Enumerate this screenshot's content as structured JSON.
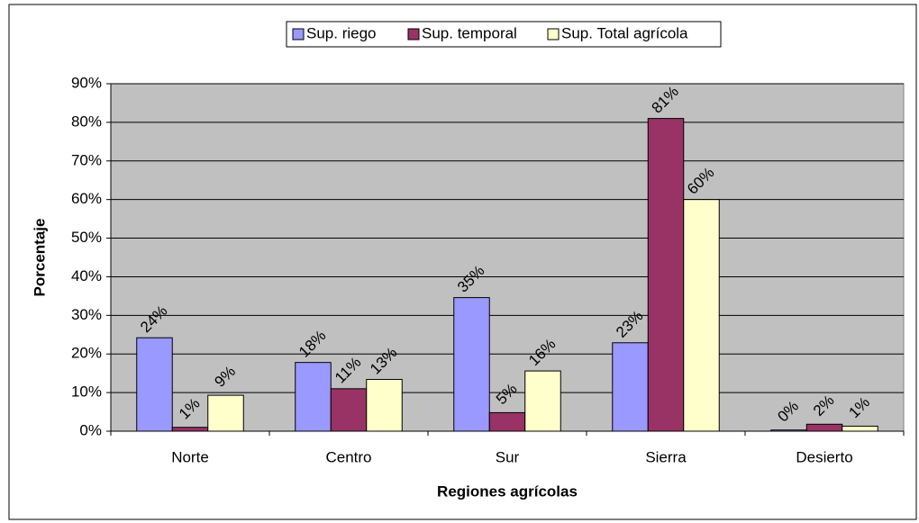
{
  "chart_data": {
    "type": "bar",
    "x_label": "Regiones agrícolas",
    "y_label": "Porcentaje",
    "categories": [
      "Norte",
      "Centro",
      "Sur",
      "Sierra",
      "Desierto"
    ],
    "series": [
      {
        "name": "Sup. riego",
        "color": "#9999ff",
        "values": [
          24.2,
          17.8,
          34.6,
          22.9,
          0.3
        ],
        "value_labels": [
          "24%",
          "18%",
          "35%",
          "23%",
          "0%"
        ]
      },
      {
        "name": "Sup. temporal",
        "color": "#993366",
        "values": [
          1.0,
          11.0,
          4.8,
          81.0,
          1.8
        ],
        "value_labels": [
          "1%",
          "11%",
          "5%",
          "81%",
          "2%"
        ]
      },
      {
        "name": "Sup. Total agrícola",
        "color": "#ffffcc",
        "values": [
          9.3,
          13.4,
          15.6,
          60.0,
          1.3
        ],
        "value_labels": [
          "9%",
          "13%",
          "16%",
          "60%",
          "1%"
        ]
      }
    ],
    "ylim": [
      0,
      90
    ],
    "yticks": [
      {
        "value": 0,
        "label": "0%"
      },
      {
        "value": 10,
        "label": "10%"
      },
      {
        "value": 20,
        "label": "20%"
      },
      {
        "value": 30,
        "label": "30%"
      },
      {
        "value": 40,
        "label": "40%"
      },
      {
        "value": 50,
        "label": "50%"
      },
      {
        "value": 60,
        "label": "60%"
      },
      {
        "value": 70,
        "label": "70%"
      },
      {
        "value": 80,
        "label": "80%"
      },
      {
        "value": 90,
        "label": "90%"
      }
    ],
    "grid": true,
    "plot_background": "#c0c0c0",
    "legend": "top"
  }
}
